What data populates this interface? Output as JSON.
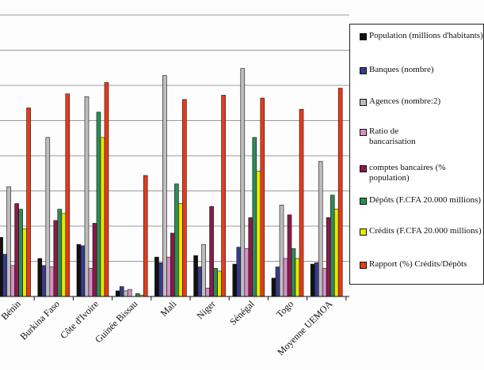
{
  "chart_data": {
    "type": "bar",
    "title": "",
    "xlabel": "",
    "ylabel": "",
    "ylim": [
      0,
      100
    ],
    "categories": [
      "Bénin",
      "Burkina Faso",
      "Côte d'Ivoire",
      "Guinée Bissau",
      "Mali",
      "Niger",
      "Sénégal",
      "Togo",
      "Moyenne UEMOA"
    ],
    "series": [
      {
        "name": "Population (millions d'habitants)",
        "color": "#111111",
        "values": [
          21,
          13.5,
          18.5,
          2,
          14,
          14.5,
          11.5,
          6.5,
          11.5
        ]
      },
      {
        "name": "Banques (nombre)",
        "color": "#3a3a8c",
        "values": [
          15,
          11,
          18,
          3.5,
          12,
          10.5,
          17.5,
          10.5,
          12
        ]
      },
      {
        "name": "Agences (nombre:2)",
        "color": "#bdbdbd",
        "values": [
          39,
          56.5,
          71,
          2,
          78.5,
          18.5,
          81,
          32.5,
          48
        ]
      },
      {
        "name": "Ratio de\nbancarisation",
        "color": "#d98fc8",
        "values": [
          11,
          10.5,
          10,
          2.5,
          14,
          3,
          17,
          13.5,
          10
        ]
      },
      {
        "name": "comptes bancaires (% population)",
        "color": "#8b1a4a",
        "values": [
          33,
          27,
          26,
          0,
          22.5,
          32,
          28,
          29,
          28
        ]
      },
      {
        "name": "Dépôts (F.CFA 20.000 millions)",
        "color": "#2e8b57",
        "values": [
          31,
          31,
          65.5,
          1,
          40,
          10,
          56.5,
          17,
          36
        ]
      },
      {
        "name": "Crédits (F.CFA 20.000 millions)",
        "color": "#e8e800",
        "values": [
          24,
          29.5,
          56.5,
          0.5,
          33,
          9,
          44.5,
          13.5,
          31
        ]
      },
      {
        "name": "Rapport (%) Crédits/Dépôts",
        "color": "#e53b1c",
        "values": [
          67,
          72,
          76,
          43,
          70,
          71.5,
          70.5,
          66.5,
          74
        ]
      }
    ],
    "legend_position": "right",
    "grid": true
  }
}
